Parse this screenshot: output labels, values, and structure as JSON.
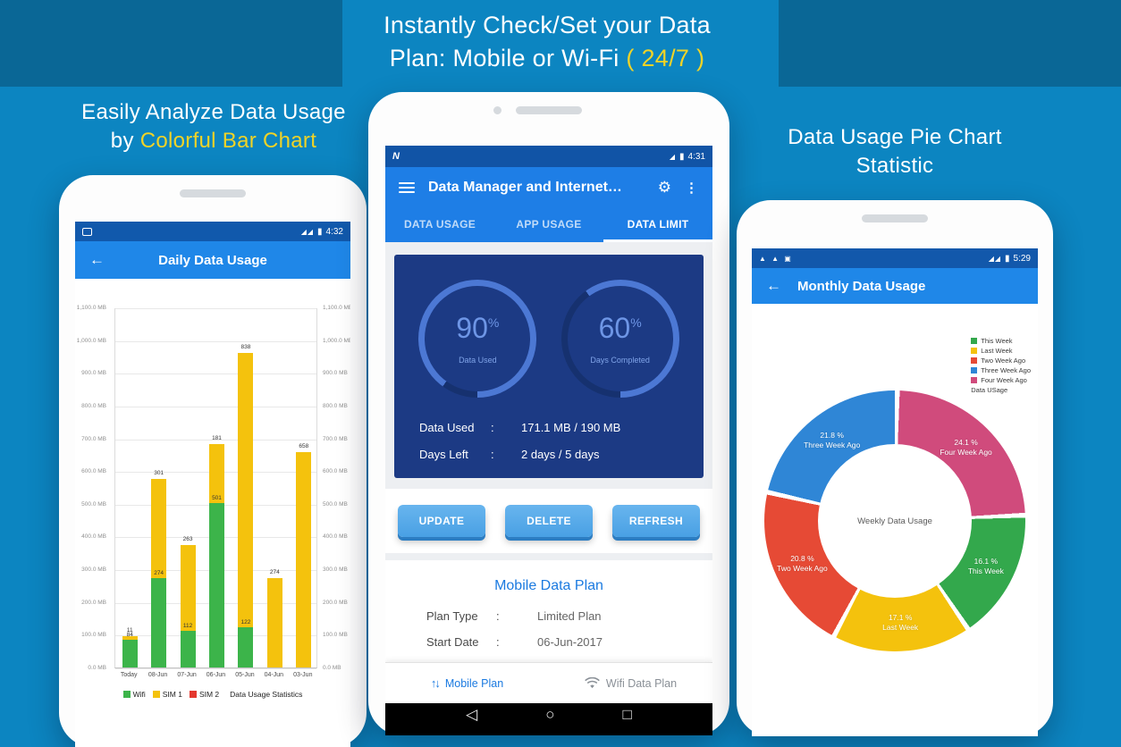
{
  "palette": {
    "bg": "#0c85c1",
    "bg_dark_corner": "#0a6796",
    "accent_yellow": "#f0d327",
    "appbar_blue": "#1f87e8",
    "statusbar_blue": "#1159ac",
    "deep_card_navy": "#1c3a84",
    "gauge_fill": "#4c78d4",
    "gauge_track": "#16316f",
    "gauge_text": "#6e96e6",
    "button_shadow_blue": "#2c7dc2",
    "link_blue": "#1b7ae0"
  },
  "promo": {
    "top_line1": "Instantly Check/Set your Data",
    "top_line2": "Plan: Mobile or Wi-Fi",
    "top_accent": "( 24/7 )",
    "left_line1": "Easily Analyze Data Usage",
    "left_line2_prefix": "by",
    "left_line2_accent": "Colorful Bar Chart",
    "right_line1": "Data Usage Pie Chart",
    "right_line2": "Statistic"
  },
  "bar_phone": {
    "status": {
      "signal": "◢◢",
      "battery": "▮",
      "time": "4:32"
    },
    "appbar": {
      "back": "←",
      "title": "Daily Data Usage"
    },
    "chart_data": {
      "type": "stacked-bar",
      "unit": "MB",
      "ylim": [
        0,
        1100
      ],
      "ytick_step": 100,
      "categories": [
        "Today",
        "08-Jun",
        "07-Jun",
        "06-Jun",
        "05-Jun",
        "04-Jun",
        "03-Jun"
      ],
      "series": [
        {
          "name": "Wifi",
          "color": "#3cb44a",
          "values": [
            84,
            274,
            112,
            501,
            122,
            0,
            0
          ]
        },
        {
          "name": "SIM 1",
          "color": "#f4c20d",
          "values": [
            11,
            301,
            263,
            181,
            838,
            274,
            658
          ]
        },
        {
          "name": "SIM 2",
          "color": "#e4372e",
          "values": [
            0,
            0,
            0,
            0,
            0,
            0,
            0
          ]
        }
      ],
      "legend_title": "Data Usage Statistics",
      "grid": true,
      "legend_position": "bottom"
    }
  },
  "manager_phone": {
    "status": {
      "left": "N",
      "signal": "◢",
      "battery": "▮",
      "time": "4:31"
    },
    "appbar": {
      "title": "Data Manager and Internet…"
    },
    "tabs": [
      {
        "label": "DATA USAGE",
        "active": false
      },
      {
        "label": "APP USAGE",
        "active": false
      },
      {
        "label": "DATA LIMIT",
        "active": true
      }
    ],
    "gauges": [
      {
        "percent": 90,
        "label": "Data Used"
      },
      {
        "percent": 60,
        "label": "Days Completed"
      }
    ],
    "stats": [
      {
        "label": "Data Used",
        "value": "171.1 MB / 190 MB"
      },
      {
        "label": "Days Left",
        "value": "2 days / 5 days"
      }
    ],
    "buttons": [
      "UPDATE",
      "DELETE",
      "REFRESH"
    ],
    "plan": {
      "title": "Mobile Data Plan",
      "rows": [
        {
          "label": "Plan Type",
          "value": "Limited Plan"
        },
        {
          "label": "Start Date",
          "value": "06-Jun-2017"
        }
      ]
    },
    "bottom_nav": {
      "left_icon": "↑↓",
      "left_label": "Mobile Plan",
      "right_label": "Wifi Data Plan"
    },
    "nav_bar": {
      "back": "◁",
      "home": "○",
      "recents": "□"
    }
  },
  "pie_phone": {
    "status": {
      "left": "▲ ▲ ▣",
      "signal": "◢◢",
      "battery": "▮",
      "time": "5:29"
    },
    "appbar": {
      "back": "←",
      "title": "Monthly Data Usage"
    },
    "chart_data": {
      "type": "pie",
      "center_label": "Weekly Data Usage",
      "legend_title": "Data USage",
      "slices": [
        {
          "name": "Four Week Ago",
          "percent": 24.1,
          "color": "#d04b7c"
        },
        {
          "name": "This Week",
          "percent": 16.1,
          "color": "#33a84c"
        },
        {
          "name": "Last Week",
          "percent": 17.1,
          "color": "#f4c20d"
        },
        {
          "name": "Two Week Ago",
          "percent": 20.8,
          "color": "#e64a35"
        },
        {
          "name": "Three Week Ago",
          "percent": 21.8,
          "color": "#2f86d6"
        }
      ],
      "legend_order": [
        "This Week",
        "Last Week",
        "Two Week Ago",
        "Three Week Ago",
        "Four Week Ago"
      ],
      "legend_position": "top-right"
    }
  }
}
